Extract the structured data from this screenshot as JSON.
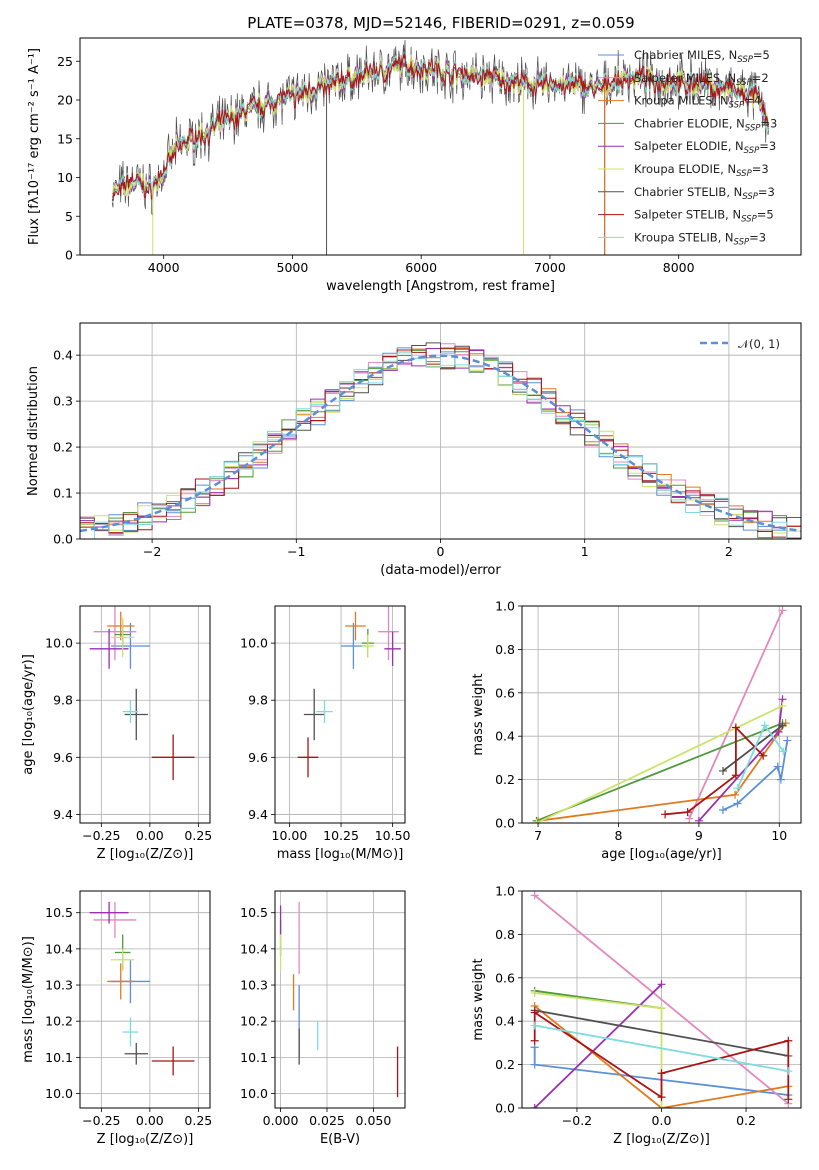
{
  "title": "PLATE=0378, MJD=52146, FIBERID=0291, z=0.059",
  "colors": [
    "#5b8fd8",
    "#e388c0",
    "#e07a20",
    "#4f9a3c",
    "#9a2fb0",
    "#cce36a",
    "#505050",
    "#aa1414",
    "#7fdbe0"
  ],
  "chart_data": [
    {
      "id": "spectrum",
      "type": "line",
      "xlabel": "wavelength [Angstrom, rest frame]",
      "ylabel": "Flux [fλ10⁻¹⁷ erg cm⁻² s⁻¹ A⁻¹]",
      "xlim": [
        3350,
        8950
      ],
      "ylim": [
        0,
        28
      ],
      "xticks": [
        4000,
        5000,
        6000,
        7000,
        8000
      ],
      "yticks": [
        0,
        5,
        10,
        15,
        20,
        25
      ],
      "grid": false,
      "legend": "top-right",
      "continuum": {
        "x": [
          3600,
          3700,
          3800,
          3900,
          4000,
          4100,
          4300,
          4500,
          4700,
          5000,
          5300,
          5600,
          5900,
          6200,
          6500,
          6800,
          7100,
          7400,
          7600,
          7800,
          8200,
          8600,
          8700
        ],
        "y": [
          8,
          9,
          9.5,
          8.5,
          10.5,
          14,
          15.5,
          17.5,
          19,
          20.5,
          22,
          23.5,
          24.5,
          23.5,
          23,
          22,
          22,
          21.5,
          23,
          22.5,
          22,
          20.5,
          17
        ]
      },
      "series": [
        {
          "name": "Chabrier MILES, N_SSP=5"
        },
        {
          "name": "Salpeter MILES, N_SSP=2"
        },
        {
          "name": "Kroupa MILES, N_SSP=4"
        },
        {
          "name": "Chabrier ELODIE, N_SSP=3"
        },
        {
          "name": "Salpeter ELODIE, N_SSP=3"
        },
        {
          "name": "Kroupa ELODIE, N_SSP=3"
        },
        {
          "name": "Chabrier STELIB, N_SSP=3"
        },
        {
          "name": "Salpeter STELIB, N_SSP=5"
        },
        {
          "name": "Kroupa STELIB, N_SSP=3"
        }
      ],
      "legend_entries": [
        {
          "pre": "Chabrier MILES, N",
          "sub": "SSP",
          "post": "=5"
        },
        {
          "pre": "Salpeter MILES, N",
          "sub": "SSP",
          "post": "=2"
        },
        {
          "pre": "Kroupa MILES, N",
          "sub": "SSP",
          "post": "=4"
        },
        {
          "pre": "Chabrier ELODIE, N",
          "sub": "SSP",
          "post": "=3"
        },
        {
          "pre": "Salpeter ELODIE, N",
          "sub": "SSP",
          "post": "=3"
        },
        {
          "pre": "Kroupa ELODIE, N",
          "sub": "SSP",
          "post": "=3"
        },
        {
          "pre": "Chabrier STELIB, N",
          "sub": "SSP",
          "post": "=3"
        },
        {
          "pre": "Salpeter STELIB, N",
          "sub": "SSP",
          "post": "=5"
        },
        {
          "pre": "Kroupa STELIB, N",
          "sub": "SSP",
          "post": "=3"
        }
      ]
    },
    {
      "id": "residuals",
      "type": "line",
      "xlabel": "(data-model)/error",
      "ylabel": "Normed distribution",
      "xlim": [
        -2.5,
        2.5
      ],
      "ylim": [
        0,
        0.47
      ],
      "xticks": [
        -2,
        -1,
        0,
        1,
        2
      ],
      "yticks": [
        0.0,
        0.1,
        0.2,
        0.3,
        0.4
      ],
      "grid": true,
      "legend": "top-right",
      "legend_label": "𝒩(0, 1)",
      "reference_curve": "normal(0,1)"
    },
    {
      "id": "age-vs-Z",
      "type": "scatter",
      "xlabel": "Z [log₁₀(Z/Z⊙)]",
      "ylabel": "age  [log₁₀(age/yr)]",
      "xlim": [
        -0.36,
        0.31
      ],
      "ylim": [
        9.37,
        10.13
      ],
      "xticks": [
        -0.25,
        0.0,
        0.25
      ],
      "yticks": [
        9.4,
        9.6,
        9.8,
        10.0
      ],
      "grid": true,
      "points": [
        {
          "x": -0.1,
          "xerr": 0.1,
          "y": 9.99,
          "yerr": 0.08
        },
        {
          "x": -0.18,
          "xerr": 0.11,
          "y": 10.04,
          "yerr": 0.1
        },
        {
          "x": -0.15,
          "xerr": 0.07,
          "y": 10.06,
          "yerr": 0.05
        },
        {
          "x": -0.14,
          "xerr": 0.04,
          "y": 10.03,
          "yerr": 0.05
        },
        {
          "x": -0.21,
          "xerr": 0.1,
          "y": 9.98,
          "yerr": 0.07
        },
        {
          "x": -0.14,
          "xerr": 0.06,
          "y": 10.02,
          "yerr": 0.07
        },
        {
          "x": -0.07,
          "xerr": 0.06,
          "y": 9.75,
          "yerr": 0.09
        },
        {
          "x": 0.12,
          "xerr": 0.11,
          "y": 9.6,
          "yerr": 0.08
        },
        {
          "x": -0.1,
          "xerr": 0.04,
          "y": 9.76,
          "yerr": 0.04
        }
      ]
    },
    {
      "id": "age-vs-mass",
      "type": "scatter",
      "xlabel": "mass [log₁₀(M/M⊙)]",
      "ylabel": "",
      "xlim": [
        9.93,
        10.56
      ],
      "ylim": [
        9.37,
        10.13
      ],
      "xticks": [
        10.0,
        10.25,
        10.5
      ],
      "yticks": [
        9.4,
        9.6,
        9.8,
        10.0
      ],
      "grid": true,
      "points": [
        {
          "x": 10.31,
          "xerr": 0.06,
          "y": 9.99,
          "yerr": 0.08
        },
        {
          "x": 10.48,
          "xerr": 0.05,
          "y": 10.04,
          "yerr": 0.1
        },
        {
          "x": 10.32,
          "xerr": 0.05,
          "y": 10.06,
          "yerr": 0.05
        },
        {
          "x": 10.38,
          "xerr": 0.03,
          "y": 10.0,
          "yerr": 0.05
        },
        {
          "x": 10.5,
          "xerr": 0.04,
          "y": 9.98,
          "yerr": 0.06
        },
        {
          "x": 10.38,
          "xerr": 0.03,
          "y": 9.99,
          "yerr": 0.04
        },
        {
          "x": 10.12,
          "xerr": 0.05,
          "y": 9.75,
          "yerr": 0.09
        },
        {
          "x": 10.09,
          "xerr": 0.05,
          "y": 9.6,
          "yerr": 0.07
        },
        {
          "x": 10.17,
          "xerr": 0.04,
          "y": 9.76,
          "yerr": 0.04
        }
      ]
    },
    {
      "id": "weight-vs-age",
      "type": "line",
      "xlabel": "age  [log₁₀(age/yr)]",
      "ylabel": "mass weight",
      "xlim": [
        6.8,
        10.27
      ],
      "ylim": [
        0,
        1.0
      ],
      "xticks": [
        7,
        8,
        9,
        10
      ],
      "yticks": [
        0.0,
        0.2,
        0.4,
        0.6,
        0.8,
        1.0
      ],
      "grid": true,
      "series": [
        {
          "x": [
            9.3,
            9.48,
            9.98,
            10.02,
            10.1
          ],
          "y": [
            0.06,
            0.09,
            0.26,
            0.2,
            0.38
          ]
        },
        {
          "x": [
            8.88,
            10.04
          ],
          "y": [
            0.02,
            0.98
          ]
        },
        {
          "x": [
            7.0,
            9.45,
            10.08
          ],
          "y": [
            0.01,
            0.13,
            0.46
          ]
        },
        {
          "x": [
            6.98,
            10.04
          ],
          "y": [
            0.01,
            0.46
          ]
        },
        {
          "x": [
            9.0,
            9.99,
            10.04
          ],
          "y": [
            0.01,
            0.42,
            0.57
          ]
        },
        {
          "x": [
            6.98,
            10.04
          ],
          "y": [
            0.0,
            0.54
          ]
        },
        {
          "x": [
            9.3,
            10.04
          ],
          "y": [
            0.24,
            0.45
          ]
        },
        {
          "x": [
            8.58,
            8.86,
            9.46,
            9.46,
            9.8
          ],
          "y": [
            0.04,
            0.05,
            0.22,
            0.44,
            0.31
          ]
        },
        {
          "x": [
            9.48,
            9.82,
            10.05
          ],
          "y": [
            0.16,
            0.45,
            0.33
          ]
        }
      ]
    },
    {
      "id": "mass-vs-Z",
      "type": "scatter",
      "xlabel": "Z [log₁₀(Z/Z⊙)]",
      "ylabel": "mass [log₁₀(M/M⊙)]",
      "xlim": [
        -0.36,
        0.31
      ],
      "ylim": [
        9.96,
        10.56
      ],
      "xticks": [
        -0.25,
        0.0,
        0.25
      ],
      "yticks": [
        10.0,
        10.1,
        10.2,
        10.3,
        10.4,
        10.5
      ],
      "grid": true,
      "points": [
        {
          "x": -0.1,
          "xerr": 0.1,
          "y": 10.31,
          "yerr": 0.06
        },
        {
          "x": -0.18,
          "xerr": 0.11,
          "y": 10.48,
          "yerr": 0.05
        },
        {
          "x": -0.15,
          "xerr": 0.07,
          "y": 10.31,
          "yerr": 0.05
        },
        {
          "x": -0.14,
          "xerr": 0.04,
          "y": 10.39,
          "yerr": 0.05
        },
        {
          "x": -0.21,
          "xerr": 0.1,
          "y": 10.5,
          "yerr": 0.03
        },
        {
          "x": -0.14,
          "xerr": 0.06,
          "y": 10.37,
          "yerr": 0.03
        },
        {
          "x": -0.07,
          "xerr": 0.06,
          "y": 10.11,
          "yerr": 0.03
        },
        {
          "x": 0.12,
          "xerr": 0.11,
          "y": 10.09,
          "yerr": 0.04
        },
        {
          "x": -0.1,
          "xerr": 0.04,
          "y": 10.17,
          "yerr": 0.04
        }
      ]
    },
    {
      "id": "mass-vs-EBV",
      "type": "scatter",
      "xlabel": "E(B-V)",
      "ylabel": "",
      "xlim": [
        -0.003,
        0.067
      ],
      "ylim": [
        9.96,
        10.56
      ],
      "xticks": [
        0.0,
        0.025,
        0.05
      ],
      "yticks": [
        10.0,
        10.1,
        10.2,
        10.3,
        10.4,
        10.5
      ],
      "grid": true,
      "points": [
        {
          "x": 0.01,
          "xerr": 0,
          "y": 10.2,
          "yerr": 0.1
        },
        {
          "x": 0.01,
          "xerr": 0,
          "y": 10.43,
          "yerr": 0.1
        },
        {
          "x": 0.007,
          "xerr": 0,
          "y": 10.28,
          "yerr": 0.05
        },
        {
          "x": 0.0,
          "xerr": 0,
          "y": 10.43,
          "yerr": 0.05
        },
        {
          "x": 0.0,
          "xerr": 0,
          "y": 10.48,
          "yerr": 0.04
        },
        {
          "x": 0.0,
          "xerr": 0,
          "y": 10.39,
          "yerr": 0.05
        },
        {
          "x": 0.01,
          "xerr": 0,
          "y": 10.13,
          "yerr": 0.05
        },
        {
          "x": 0.063,
          "xerr": 0,
          "y": 10.06,
          "yerr": 0.07
        },
        {
          "x": 0.02,
          "xerr": 0,
          "y": 10.16,
          "yerr": 0.04
        }
      ]
    },
    {
      "id": "weight-vs-Z",
      "type": "line",
      "xlabel": "Z [log₁₀(Z/Z⊙)]",
      "ylabel": "mass weight",
      "xlim": [
        -0.33,
        0.33
      ],
      "ylim": [
        0,
        1.0
      ],
      "xticks": [
        -0.2,
        0.0,
        0.2
      ],
      "yticks": [
        0.0,
        0.2,
        0.4,
        0.6,
        0.8,
        1.0
      ],
      "grid": true,
      "series": [
        {
          "x": [
            -0.3,
            -0.3,
            0.3
          ],
          "y": [
            0.28,
            0.2,
            0.06
          ]
        },
        {
          "x": [
            -0.3,
            0.3
          ],
          "y": [
            0.98,
            0.02
          ]
        },
        {
          "x": [
            -0.3,
            0.0,
            0.3
          ],
          "y": [
            0.47,
            0.0,
            0.1
          ]
        },
        {
          "x": [
            -0.3,
            0.0
          ],
          "y": [
            0.54,
            0.46
          ]
        },
        {
          "x": [
            -0.3,
            0.0
          ],
          "y": [
            0.0,
            0.57
          ]
        },
        {
          "x": [
            -0.3,
            0.0,
            0.0
          ],
          "y": [
            0.53,
            0.46,
            0.0
          ]
        },
        {
          "x": [
            -0.3,
            0.3
          ],
          "y": [
            0.45,
            0.24
          ]
        },
        {
          "x": [
            -0.3,
            -0.3,
            0.0,
            0.0,
            0.3,
            0.3
          ],
          "y": [
            0.31,
            0.44,
            0.05,
            0.16,
            0.31,
            0.04
          ]
        },
        {
          "x": [
            -0.3,
            0.3
          ],
          "y": [
            0.38,
            0.17
          ]
        }
      ]
    }
  ]
}
